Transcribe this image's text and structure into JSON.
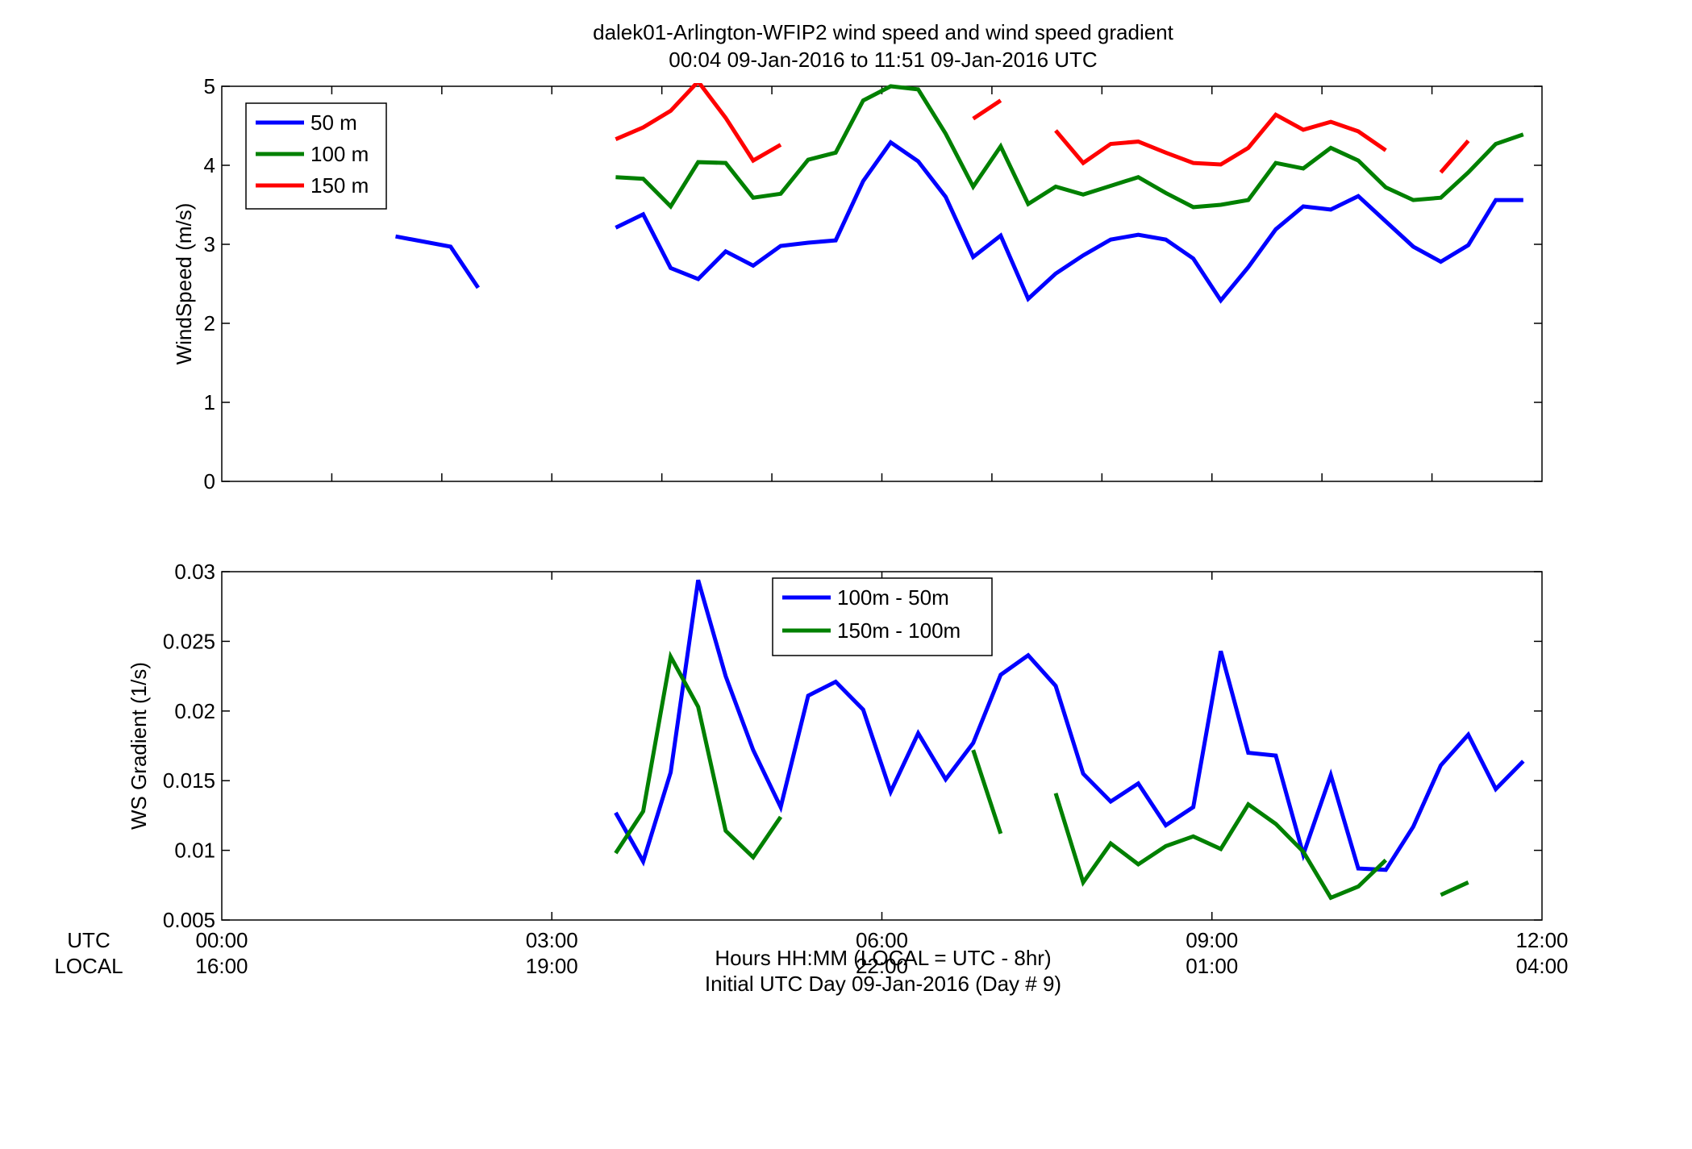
{
  "figure": {
    "title_line1": "dalek01-Arlington-WFIP2  wind speed and wind speed gradient",
    "title_line2": "00:04 09-Jan-2016 to 11:51 09-Jan-2016  UTC",
    "xlabel_line1": "Hours HH:MM  (LOCAL = UTC - 8hr)",
    "xlabel_line2": "Initial UTC Day 09-Jan-2016 (Day # 9)",
    "utc_label": "UTC",
    "local_label": "LOCAL",
    "utc_ticks": [
      "00:00",
      "03:00",
      "06:00",
      "09:00",
      "12:00"
    ],
    "local_ticks": [
      "16:00",
      "19:00",
      "22:00",
      "01:00",
      "04:00"
    ]
  },
  "chart_data": [
    {
      "type": "line",
      "ylabel": "WindSpeed (m/s)",
      "xlim": [
        0,
        12
      ],
      "ylim": [
        0,
        5
      ],
      "yticks": [
        "0",
        "1",
        "2",
        "3",
        "4",
        "5"
      ],
      "grid": false,
      "legend_position": "top-left",
      "series": [
        {
          "name": "50 m",
          "color": "#0000ff",
          "points": [
            [
              1.58,
              3.1
            ],
            [
              2.08,
              2.97
            ],
            [
              2.33,
              2.45
            ],
            null,
            [
              3.58,
              3.21
            ],
            [
              3.83,
              3.38
            ],
            [
              4.08,
              2.7
            ],
            [
              4.33,
              2.56
            ],
            [
              4.58,
              2.91
            ],
            [
              4.83,
              2.73
            ],
            [
              5.08,
              2.98
            ],
            [
              5.33,
              3.02
            ],
            [
              5.58,
              3.05
            ],
            [
              5.83,
              3.8
            ],
            [
              6.08,
              4.29
            ],
            [
              6.33,
              4.05
            ],
            [
              6.58,
              3.6
            ],
            [
              6.83,
              2.84
            ],
            [
              7.08,
              3.11
            ],
            [
              7.33,
              2.31
            ],
            [
              7.58,
              2.63
            ],
            [
              7.83,
              2.86
            ],
            [
              8.08,
              3.06
            ],
            [
              8.33,
              3.12
            ],
            [
              8.58,
              3.06
            ],
            [
              8.83,
              2.82
            ],
            [
              9.08,
              2.29
            ],
            [
              9.33,
              2.71
            ],
            [
              9.58,
              3.19
            ],
            [
              9.83,
              3.48
            ],
            [
              10.08,
              3.44
            ],
            [
              10.33,
              3.61
            ],
            [
              10.58,
              3.29
            ],
            [
              10.83,
              2.97
            ],
            [
              11.08,
              2.78
            ],
            [
              11.33,
              2.99
            ],
            [
              11.58,
              3.56
            ],
            [
              11.83,
              3.56
            ]
          ]
        },
        {
          "name": "100 m",
          "color": "#008000",
          "points": [
            [
              3.58,
              3.85
            ],
            [
              3.83,
              3.83
            ],
            [
              4.08,
              3.48
            ],
            [
              4.33,
              4.04
            ],
            [
              4.58,
              4.03
            ],
            [
              4.83,
              3.59
            ],
            [
              5.08,
              3.64
            ],
            [
              5.33,
              4.07
            ],
            [
              5.58,
              4.16
            ],
            [
              5.83,
              4.82
            ],
            [
              6.08,
              5.0
            ],
            [
              6.33,
              4.96
            ],
            [
              6.58,
              4.4
            ],
            [
              6.83,
              3.73
            ],
            [
              7.08,
              4.24
            ],
            [
              7.33,
              3.51
            ],
            [
              7.58,
              3.73
            ],
            [
              7.83,
              3.63
            ],
            [
              8.08,
              3.74
            ],
            [
              8.33,
              3.85
            ],
            [
              8.58,
              3.65
            ],
            [
              8.83,
              3.47
            ],
            [
              9.08,
              3.5
            ],
            [
              9.33,
              3.56
            ],
            [
              9.58,
              4.03
            ],
            [
              9.83,
              3.96
            ],
            [
              10.08,
              4.22
            ],
            [
              10.33,
              4.06
            ],
            [
              10.58,
              3.72
            ],
            [
              10.83,
              3.56
            ],
            [
              11.08,
              3.59
            ],
            [
              11.33,
              3.91
            ],
            [
              11.58,
              4.27
            ],
            [
              11.83,
              4.39
            ]
          ]
        },
        {
          "name": "150 m",
          "color": "#ff0000",
          "points": [
            [
              3.58,
              4.33
            ],
            [
              3.83,
              4.48
            ],
            [
              4.08,
              4.69
            ],
            [
              4.33,
              5.06
            ],
            [
              4.58,
              4.6
            ],
            [
              4.83,
              4.06
            ],
            [
              5.08,
              4.26
            ],
            null,
            [
              6.83,
              4.59
            ],
            [
              7.08,
              4.82
            ],
            null,
            [
              7.58,
              4.44
            ],
            [
              7.83,
              4.03
            ],
            [
              8.08,
              4.27
            ],
            [
              8.33,
              4.3
            ],
            [
              8.58,
              4.16
            ],
            [
              8.83,
              4.03
            ],
            [
              9.08,
              4.01
            ],
            [
              9.33,
              4.22
            ],
            [
              9.58,
              4.64
            ],
            [
              9.83,
              4.45
            ],
            [
              10.08,
              4.55
            ],
            [
              10.33,
              4.43
            ],
            [
              10.58,
              4.19
            ],
            null,
            [
              11.08,
              3.91
            ],
            [
              11.33,
              4.31
            ]
          ]
        }
      ]
    },
    {
      "type": "line",
      "ylabel": "WS Gradient (1/s)",
      "xlim": [
        0,
        12
      ],
      "ylim": [
        0.005,
        0.03
      ],
      "yticks": [
        "0.005",
        "0.01",
        "0.015",
        "0.02",
        "0.025",
        "0.03"
      ],
      "grid": false,
      "legend_position": "top-center",
      "series": [
        {
          "name": "100m - 50m",
          "color": "#0000ff",
          "points": [
            [
              3.58,
              0.0127
            ],
            [
              3.83,
              0.0092
            ],
            [
              4.08,
              0.0156
            ],
            [
              4.33,
              0.0294
            ],
            [
              4.58,
              0.0225
            ],
            [
              4.83,
              0.0172
            ],
            [
              5.08,
              0.0131
            ],
            [
              5.33,
              0.0211
            ],
            [
              5.58,
              0.0221
            ],
            [
              5.83,
              0.0201
            ],
            [
              6.08,
              0.0142
            ],
            [
              6.33,
              0.0184
            ],
            [
              6.58,
              0.0151
            ],
            [
              6.83,
              0.0177
            ],
            [
              7.08,
              0.0226
            ],
            [
              7.33,
              0.024
            ],
            [
              7.58,
              0.0218
            ],
            [
              7.83,
              0.0155
            ],
            [
              8.08,
              0.0135
            ],
            [
              8.33,
              0.0148
            ],
            [
              8.58,
              0.0118
            ],
            [
              8.83,
              0.0131
            ],
            [
              9.08,
              0.0243
            ],
            [
              9.33,
              0.017
            ],
            [
              9.58,
              0.0168
            ],
            [
              9.83,
              0.0097
            ],
            [
              10.08,
              0.0154
            ],
            [
              10.33,
              0.0087
            ],
            [
              10.58,
              0.0086
            ],
            [
              10.83,
              0.0117
            ],
            [
              11.08,
              0.0161
            ],
            [
              11.33,
              0.0183
            ],
            [
              11.58,
              0.0144
            ],
            [
              11.83,
              0.0164
            ]
          ]
        },
        {
          "name": "150m - 100m",
          "color": "#008000",
          "points": [
            [
              3.58,
              0.0098
            ],
            [
              3.83,
              0.0128
            ],
            [
              4.08,
              0.0239
            ],
            [
              4.33,
              0.0203
            ],
            [
              4.58,
              0.0114
            ],
            [
              4.83,
              0.0095
            ],
            [
              5.08,
              0.0124
            ],
            null,
            [
              6.83,
              0.0172
            ],
            [
              7.08,
              0.0112
            ],
            null,
            [
              7.58,
              0.0141
            ],
            [
              7.83,
              0.0077
            ],
            [
              8.08,
              0.0105
            ],
            [
              8.33,
              0.009
            ],
            [
              8.58,
              0.0103
            ],
            [
              8.83,
              0.011
            ],
            [
              9.08,
              0.0101
            ],
            [
              9.33,
              0.0133
            ],
            [
              9.58,
              0.0119
            ],
            [
              9.83,
              0.0099
            ],
            [
              10.08,
              0.0066
            ],
            [
              10.33,
              0.0074
            ],
            [
              10.58,
              0.0093
            ],
            null,
            [
              11.08,
              0.0068
            ],
            [
              11.33,
              0.0077
            ]
          ]
        }
      ]
    }
  ]
}
